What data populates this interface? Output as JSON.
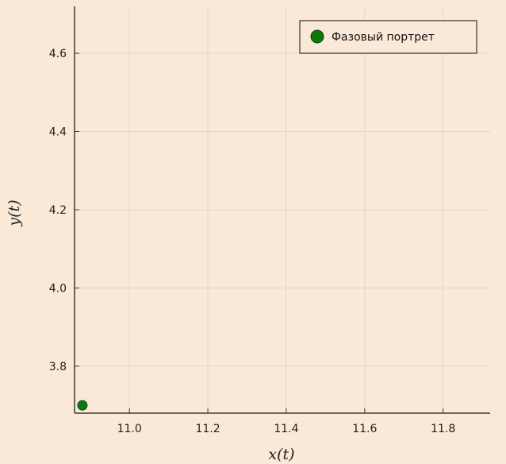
{
  "chart_data": {
    "type": "scatter",
    "xlabel": "x(t)",
    "ylabel": "y(t)",
    "xlim": [
      10.86,
      11.92
    ],
    "ylim": [
      3.68,
      4.72
    ],
    "xticks": [
      "11.0",
      "11.2",
      "11.4",
      "11.6",
      "11.8"
    ],
    "xtick_values": [
      11.0,
      11.2,
      11.4,
      11.6,
      11.8
    ],
    "yticks": [
      "3.8",
      "4.0",
      "4.2",
      "4.4",
      "4.6"
    ],
    "ytick_values": [
      3.8,
      4.0,
      4.2,
      4.4,
      4.6
    ],
    "grid": true,
    "legend_position": "top-right",
    "series": [
      {
        "name": "Фазовый портрет",
        "color": "#0a7a0a",
        "points": [
          {
            "x": 10.88,
            "y": 3.7
          }
        ]
      }
    ]
  },
  "colors": {
    "background": "#f9e9d6",
    "grid": "#e6d6c2",
    "axis": "#3a3a3a",
    "marker": "#0a7a0a"
  }
}
